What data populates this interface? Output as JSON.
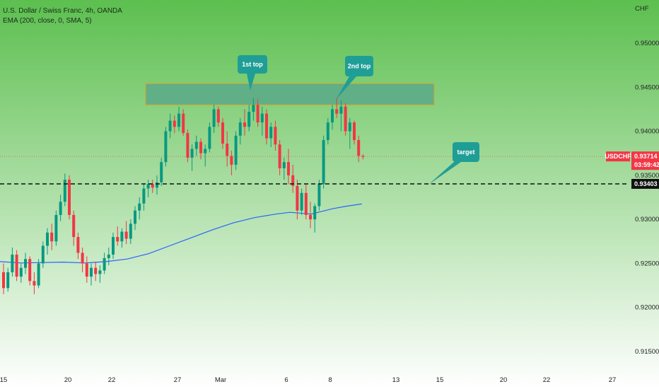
{
  "header": {
    "symbol_line": "U.S. Dollar / Swiss Franc, 4h, OANDA",
    "indicator_line": "EMA (200, close, 0, SMA, 5)",
    "currency": "CHF"
  },
  "price_tags": {
    "symbol": "USDCHF",
    "last_price": "0.93714",
    "countdown": "03:59:42",
    "level_price": "0.93403"
  },
  "annotations": {
    "top1": "1st top",
    "top2": "2nd top",
    "target": "target"
  },
  "colors": {
    "bull": "#089981",
    "bear": "#f23645",
    "ema": "#2962ff",
    "callout": "#1f9e96",
    "zone_fill": "#5aa98a",
    "zone_border": "#e0a020",
    "bg_top": "#5cbf4f",
    "bg_bottom": "#ffffff"
  },
  "chart_data": {
    "type": "candlestick",
    "symbol": "USDCHF",
    "timeframe": "4h",
    "source": "OANDA",
    "x_ticks": [
      "15",
      "20",
      "22",
      "27",
      "Mar",
      "6",
      "8",
      "13",
      "15",
      "20",
      "22",
      "27"
    ],
    "y_ticks": [
      "0.95000",
      "0.94500",
      "0.94000",
      "0.93500",
      "0.93000",
      "0.92500",
      "0.92000",
      "0.91500"
    ],
    "ylim": [
      0.912,
      0.9535
    ],
    "candles": [
      [
        0.924,
        0.925,
        0.9215,
        0.9222
      ],
      [
        0.9222,
        0.9245,
        0.9218,
        0.924
      ],
      [
        0.924,
        0.9268,
        0.9235,
        0.926
      ],
      [
        0.926,
        0.9265,
        0.923,
        0.9235
      ],
      [
        0.9235,
        0.925,
        0.9228,
        0.9245
      ],
      [
        0.9245,
        0.9262,
        0.9238,
        0.9255
      ],
      [
        0.9255,
        0.9258,
        0.9225,
        0.923
      ],
      [
        0.923,
        0.924,
        0.9215,
        0.9225
      ],
      [
        0.9225,
        0.9255,
        0.9222,
        0.925
      ],
      [
        0.925,
        0.9275,
        0.9245,
        0.927
      ],
      [
        0.927,
        0.929,
        0.926,
        0.9285
      ],
      [
        0.9285,
        0.9295,
        0.9265,
        0.9275
      ],
      [
        0.9275,
        0.931,
        0.927,
        0.9305
      ],
      [
        0.9305,
        0.9328,
        0.9298,
        0.932
      ],
      [
        0.932,
        0.9352,
        0.9315,
        0.9345
      ],
      [
        0.9345,
        0.935,
        0.93,
        0.9305
      ],
      [
        0.9305,
        0.931,
        0.927,
        0.928
      ],
      [
        0.928,
        0.9285,
        0.9255,
        0.9262
      ],
      [
        0.9262,
        0.9268,
        0.924,
        0.925
      ],
      [
        0.925,
        0.9258,
        0.9228,
        0.9235
      ],
      [
        0.9235,
        0.925,
        0.9225,
        0.9245
      ],
      [
        0.9245,
        0.9252,
        0.923,
        0.9238
      ],
      [
        0.9238,
        0.9248,
        0.9228,
        0.9242
      ],
      [
        0.9242,
        0.9262,
        0.9238,
        0.9256
      ],
      [
        0.9256,
        0.9268,
        0.9248,
        0.926
      ],
      [
        0.926,
        0.9285,
        0.9255,
        0.928
      ],
      [
        0.928,
        0.9292,
        0.927,
        0.9275
      ],
      [
        0.9275,
        0.929,
        0.9268,
        0.9286
      ],
      [
        0.9286,
        0.9298,
        0.9272,
        0.9278
      ],
      [
        0.9278,
        0.93,
        0.9272,
        0.9295
      ],
      [
        0.9295,
        0.9315,
        0.9288,
        0.931
      ],
      [
        0.931,
        0.9325,
        0.93,
        0.9318
      ],
      [
        0.9318,
        0.934,
        0.931,
        0.9335
      ],
      [
        0.9335,
        0.9345,
        0.9325,
        0.934
      ],
      [
        0.934,
        0.9345,
        0.933,
        0.9336
      ],
      [
        0.9336,
        0.935,
        0.9328,
        0.9342
      ],
      [
        0.9342,
        0.937,
        0.9338,
        0.9365
      ],
      [
        0.9365,
        0.9405,
        0.936,
        0.94
      ],
      [
        0.94,
        0.942,
        0.9392,
        0.9412
      ],
      [
        0.9412,
        0.9418,
        0.9398,
        0.9405
      ],
      [
        0.9405,
        0.9428,
        0.94,
        0.942
      ],
      [
        0.942,
        0.9425,
        0.9395,
        0.9398
      ],
      [
        0.9398,
        0.9402,
        0.9365,
        0.937
      ],
      [
        0.937,
        0.9385,
        0.9355,
        0.938
      ],
      [
        0.938,
        0.9395,
        0.9372,
        0.9388
      ],
      [
        0.9388,
        0.9392,
        0.9368,
        0.9375
      ],
      [
        0.9375,
        0.9385,
        0.936,
        0.938
      ],
      [
        0.938,
        0.941,
        0.9376,
        0.9405
      ],
      [
        0.9405,
        0.943,
        0.9398,
        0.9425
      ],
      [
        0.9425,
        0.9428,
        0.9405,
        0.941
      ],
      [
        0.941,
        0.9415,
        0.938,
        0.9386
      ],
      [
        0.9386,
        0.94,
        0.936,
        0.9372
      ],
      [
        0.9372,
        0.9378,
        0.935,
        0.9362
      ],
      [
        0.9362,
        0.94,
        0.9356,
        0.9395
      ],
      [
        0.9395,
        0.9415,
        0.9385,
        0.941
      ],
      [
        0.941,
        0.9425,
        0.9395,
        0.9405
      ],
      [
        0.9405,
        0.943,
        0.94,
        0.9422
      ],
      [
        0.9422,
        0.9438,
        0.9412,
        0.943
      ],
      [
        0.943,
        0.9437,
        0.9405,
        0.941
      ],
      [
        0.941,
        0.9428,
        0.9395,
        0.942
      ],
      [
        0.942,
        0.9425,
        0.9385,
        0.9392
      ],
      [
        0.9392,
        0.941,
        0.9382,
        0.9405
      ],
      [
        0.9405,
        0.9412,
        0.9378,
        0.9385
      ],
      [
        0.9385,
        0.939,
        0.935,
        0.9358
      ],
      [
        0.9358,
        0.937,
        0.9345,
        0.9365
      ],
      [
        0.9365,
        0.938,
        0.934,
        0.935
      ],
      [
        0.935,
        0.9362,
        0.933,
        0.9338
      ],
      [
        0.9338,
        0.9345,
        0.93,
        0.931
      ],
      [
        0.931,
        0.9335,
        0.9305,
        0.933
      ],
      [
        0.933,
        0.934,
        0.93,
        0.9305
      ],
      [
        0.9305,
        0.932,
        0.929,
        0.93
      ],
      [
        0.93,
        0.9318,
        0.9285,
        0.9315
      ],
      [
        0.9315,
        0.9345,
        0.931,
        0.934
      ],
      [
        0.934,
        0.9395,
        0.9335,
        0.939
      ],
      [
        0.939,
        0.9415,
        0.9385,
        0.941
      ],
      [
        0.941,
        0.943,
        0.9402,
        0.9425
      ],
      [
        0.9425,
        0.9438,
        0.9415,
        0.942
      ],
      [
        0.942,
        0.9435,
        0.94,
        0.9428
      ],
      [
        0.9428,
        0.9432,
        0.9395,
        0.94
      ],
      [
        0.94,
        0.9415,
        0.938,
        0.941
      ],
      [
        0.941,
        0.9412,
        0.9385,
        0.939
      ],
      [
        0.939,
        0.9395,
        0.9365,
        0.9372
      ],
      [
        0.9372,
        0.9374,
        0.9368,
        0.9371
      ]
    ],
    "ema": [
      [
        0,
        0.9252
      ],
      [
        30,
        0.92505
      ],
      [
        60,
        0.9251
      ],
      [
        90,
        0.92515
      ],
      [
        120,
        0.92505
      ],
      [
        150,
        0.9252
      ],
      [
        180,
        0.9255
      ],
      [
        210,
        0.9261
      ],
      [
        240,
        0.927
      ],
      [
        270,
        0.9279
      ],
      [
        300,
        0.9288
      ],
      [
        330,
        0.9296
      ],
      [
        360,
        0.9302
      ],
      [
        390,
        0.9306
      ],
      [
        410,
        0.9308
      ],
      [
        440,
        0.9306
      ],
      [
        470,
        0.9312
      ],
      [
        490,
        0.9315
      ],
      [
        512,
        0.93175
      ]
    ],
    "resistance_zone": [
      0.943,
      0.9454
    ],
    "target_level": 0.93403,
    "last_price": 0.93714
  }
}
